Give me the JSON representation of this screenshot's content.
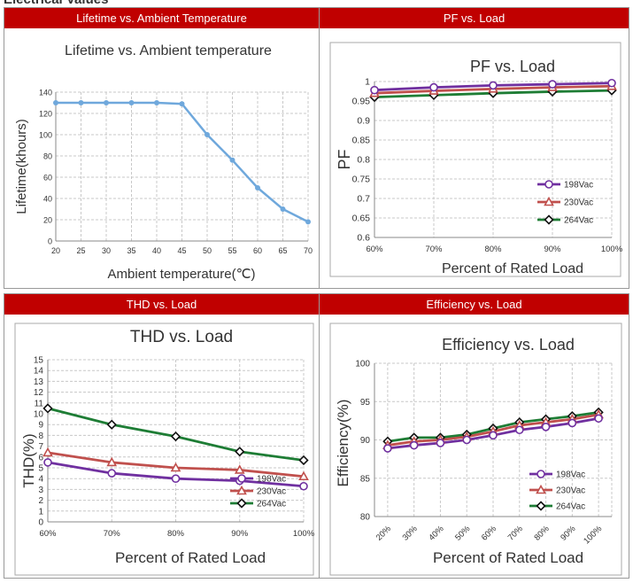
{
  "page_top_text": "Electrical Values",
  "colors": {
    "header": "#c00000",
    "grid": "#c8c8c8",
    "lifetime_line": "#6fa8dc",
    "s198": "#7030a0",
    "s230": "#c0504d",
    "s264": "#1e7d35",
    "s264_marker": "#111111"
  },
  "panels": [
    {
      "header": "Lifetime vs. Ambient Temperature"
    },
    {
      "header": "PF vs. Load"
    },
    {
      "header": "THD vs. Load"
    },
    {
      "header": "Efficiency vs. Load"
    }
  ],
  "chart_data": [
    {
      "type": "line",
      "title": "Lifetime vs. Ambient temperature",
      "xlabel": "Ambient temperature(℃)",
      "ylabel": "Lifetime(khours)",
      "x": [
        20,
        25,
        30,
        35,
        40,
        45,
        50,
        55,
        60,
        65,
        70
      ],
      "xlim": [
        20,
        70
      ],
      "ylim": [
        0,
        140
      ],
      "yticks": [
        "0",
        "20",
        "40",
        "60",
        "80",
        "100",
        "120",
        "140"
      ],
      "grid": true,
      "series": [
        {
          "values": [
            130,
            130,
            130,
            130,
            130,
            129,
            100,
            76,
            50,
            30,
            18
          ],
          "marker": "circle"
        }
      ]
    },
    {
      "type": "line",
      "title": "PF vs. Load",
      "xlabel": "Percent of Rated Load",
      "ylabel": "PF",
      "categories": [
        "60%",
        "70%",
        "80%",
        "90%",
        "100%"
      ],
      "ylim": [
        0.6,
        1
      ],
      "yticks": [
        "0.6",
        "0.65",
        "0.7",
        "0.75",
        "0.8",
        "0.85",
        "0.9",
        "0.95",
        "1"
      ],
      "grid": true,
      "legend": "right",
      "series": [
        {
          "name": "198Vac",
          "values": [
            0.978,
            0.985,
            0.99,
            0.993,
            0.996
          ],
          "marker": "circle"
        },
        {
          "name": "230Vac",
          "values": [
            0.97,
            0.976,
            0.981,
            0.985,
            0.988
          ],
          "marker": "triangle"
        },
        {
          "name": "264Vac",
          "values": [
            0.96,
            0.965,
            0.97,
            0.974,
            0.977
          ],
          "marker": "diamond"
        }
      ]
    },
    {
      "type": "line",
      "title": "THD vs. Load",
      "xlabel": "Percent of Rated Load",
      "ylabel": "THD(%)",
      "categories": [
        "60%",
        "70%",
        "80%",
        "90%",
        "100%"
      ],
      "ylim": [
        0,
        15
      ],
      "yticks": [
        "0",
        "1",
        "2",
        "3",
        "4",
        "5",
        "6",
        "7",
        "8",
        "9",
        "10",
        "11",
        "12",
        "13",
        "14",
        "15"
      ],
      "grid": true,
      "legend": "bottom-right",
      "series": [
        {
          "name": "198Vac",
          "values": [
            5.5,
            4.5,
            4.0,
            3.8,
            3.3
          ],
          "marker": "circle"
        },
        {
          "name": "230Vac",
          "values": [
            6.4,
            5.5,
            5.0,
            4.8,
            4.2
          ],
          "marker": "triangle"
        },
        {
          "name": "264Vac",
          "values": [
            10.5,
            9.0,
            7.9,
            6.5,
            5.7
          ],
          "marker": "diamond"
        }
      ]
    },
    {
      "type": "line",
      "title": "Efficiency vs. Load",
      "xlabel": "Percent of Rated Load",
      "ylabel": "Efficiency(%)",
      "categories": [
        "20%",
        "30%",
        "40%",
        "50%",
        "60%",
        "70%",
        "80%",
        "90%",
        "100%"
      ],
      "ylim": [
        80,
        100
      ],
      "yticks": [
        "80",
        "85",
        "90",
        "95",
        "100"
      ],
      "grid": true,
      "legend": "bottom-right",
      "series": [
        {
          "name": "198Vac",
          "values": [
            88.9,
            89.3,
            89.6,
            90.0,
            90.6,
            91.3,
            91.7,
            92.2,
            92.8
          ],
          "marker": "circle"
        },
        {
          "name": "230Vac",
          "values": [
            89.3,
            89.8,
            90.0,
            90.4,
            91.1,
            91.9,
            92.3,
            92.7,
            93.3
          ],
          "marker": "triangle"
        },
        {
          "name": "264Vac",
          "values": [
            89.8,
            90.3,
            90.3,
            90.7,
            91.5,
            92.3,
            92.7,
            93.1,
            93.6
          ],
          "marker": "diamond"
        }
      ]
    }
  ]
}
